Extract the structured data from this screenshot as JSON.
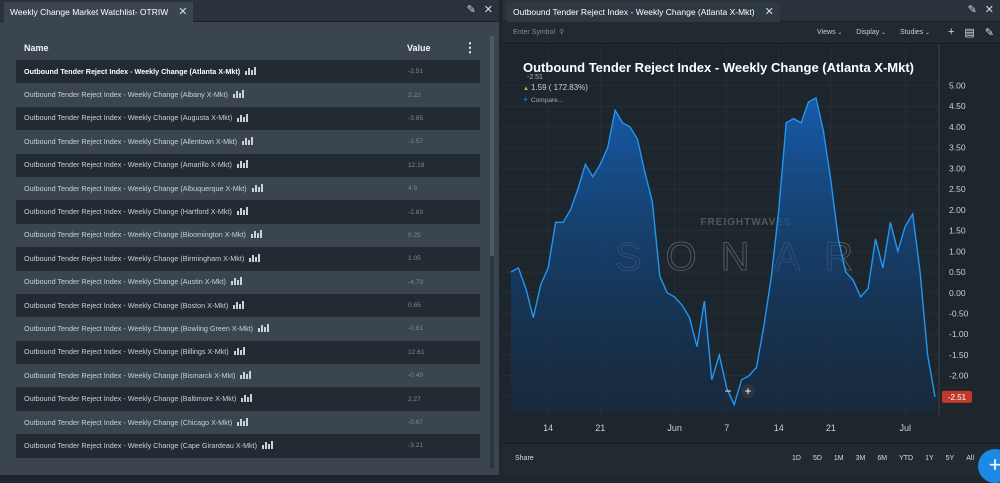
{
  "left_panel": {
    "tab_title": "Weekly Change Market Watchlist- OTRIW",
    "header": {
      "name": "Name",
      "value": "Value"
    },
    "rows": [
      {
        "name": "Outbound Tender Reject Index - Weekly Change (Atlanta X-Mkt)",
        "value": "-2.51"
      },
      {
        "name": "Outbound Tender Reject Index - Weekly Change (Albany X-Mkt)",
        "value": "3.22"
      },
      {
        "name": "Outbound Tender Reject Index - Weekly Change (Augusta X-Mkt)",
        "value": "-3.85"
      },
      {
        "name": "Outbound Tender Reject Index - Weekly Change (Allentown X-Mkt)",
        "value": "-1.57"
      },
      {
        "name": "Outbound Tender Reject Index - Weekly Change (Amarillo X-Mkt)",
        "value": "12.18"
      },
      {
        "name": "Outbound Tender Reject Index - Weekly Change (Albuquerque X-Mkt)",
        "value": "4.9"
      },
      {
        "name": "Outbound Tender Reject Index - Weekly Change (Hartford X-Mkt)",
        "value": "-2.83"
      },
      {
        "name": "Outbound Tender Reject Index - Weekly Change (Bloomington X-Mkt)",
        "value": "0.25"
      },
      {
        "name": "Outbound Tender Reject Index - Weekly Change (Birmingham X-Mkt)",
        "value": "1.05"
      },
      {
        "name": "Outbound Tender Reject Index - Weekly Change (Austin X-Mkt)",
        "value": "-4.73"
      },
      {
        "name": "Outbound Tender Reject Index - Weekly Change (Boston X-Mkt)",
        "value": "0.65"
      },
      {
        "name": "Outbound Tender Reject Index - Weekly Change (Bowling Green X-Mkt)",
        "value": "-0.61"
      },
      {
        "name": "Outbound Tender Reject Index - Weekly Change (Billings X-Mkt)",
        "value": "12.61"
      },
      {
        "name": "Outbound Tender Reject Index - Weekly Change (Bismarck X-Mkt)",
        "value": "-0.49"
      },
      {
        "name": "Outbound Tender Reject Index - Weekly Change (Baltimore X-Mkt)",
        "value": "2.27"
      },
      {
        "name": "Outbound Tender Reject Index - Weekly Change (Chicago X-Mkt)",
        "value": "-0.67"
      },
      {
        "name": "Outbound Tender Reject Index - Weekly Change (Cape Girardeau X-Mkt)",
        "value": "-3.21"
      }
    ]
  },
  "right_panel": {
    "tab_title": "Outbound Tender Reject Index - Weekly Change (Atlanta X-Mkt)",
    "symbol_placeholder": "Enter Symbol",
    "menus": [
      "Views",
      "Display",
      "Studies"
    ],
    "share_label": "Share",
    "ranges": [
      "1D",
      "5D",
      "1M",
      "3M",
      "6M",
      "YTD",
      "1Y",
      "5Y",
      "All"
    ],
    "zoom_out": "−",
    "zoom_in": "+",
    "watermark_brand": "FREIGHTWAVES",
    "watermark_product": "SONAR"
  },
  "chart_data": {
    "type": "area",
    "title": "Outbound Tender Reject Index - Weekly Change (Atlanta X-Mkt)",
    "current_value": "-2.51",
    "change_text": "1.59 ( 172.83%)",
    "compare_label": "Compare...",
    "last_value_label": "-2.51",
    "accent_color": "#2196f3",
    "last_value_color": "#c0392b",
    "ylim": [
      -2.9,
      5.3
    ],
    "yticks": [
      "5.00",
      "4.50",
      "4.00",
      "3.50",
      "3.00",
      "2.50",
      "2.00",
      "1.50",
      "1.00",
      "0.50",
      "0.00",
      "-0.50",
      "-1.00",
      "-1.50",
      "-2.00",
      "-2.50"
    ],
    "xticks": [
      {
        "label": "14",
        "index": 5
      },
      {
        "label": "21",
        "index": 12
      },
      {
        "label": "Jun",
        "index": 22
      },
      {
        "label": "7",
        "index": 29
      },
      {
        "label": "14",
        "index": 36
      },
      {
        "label": "21",
        "index": 43
      },
      {
        "label": "Jul",
        "index": 53
      }
    ],
    "values": [
      0.5,
      0.6,
      0.1,
      -0.6,
      0.2,
      0.6,
      1.7,
      1.7,
      2.0,
      2.5,
      3.1,
      2.8,
      3.1,
      3.5,
      4.4,
      4.1,
      4.0,
      3.7,
      2.9,
      2.2,
      0.4,
      0.0,
      -0.1,
      -0.3,
      -0.6,
      -1.3,
      -0.2,
      -2.1,
      -1.5,
      -2.3,
      -2.7,
      -2.1,
      -2.0,
      -1.8,
      -0.8,
      0.4,
      2.0,
      4.1,
      4.2,
      4.1,
      4.6,
      4.7,
      3.9,
      2.7,
      1.3,
      0.5,
      0.3,
      -0.1,
      0.1,
      1.3,
      0.6,
      1.7,
      1.0,
      1.6,
      1.9,
      0.5,
      -1.5,
      -2.51
    ]
  }
}
